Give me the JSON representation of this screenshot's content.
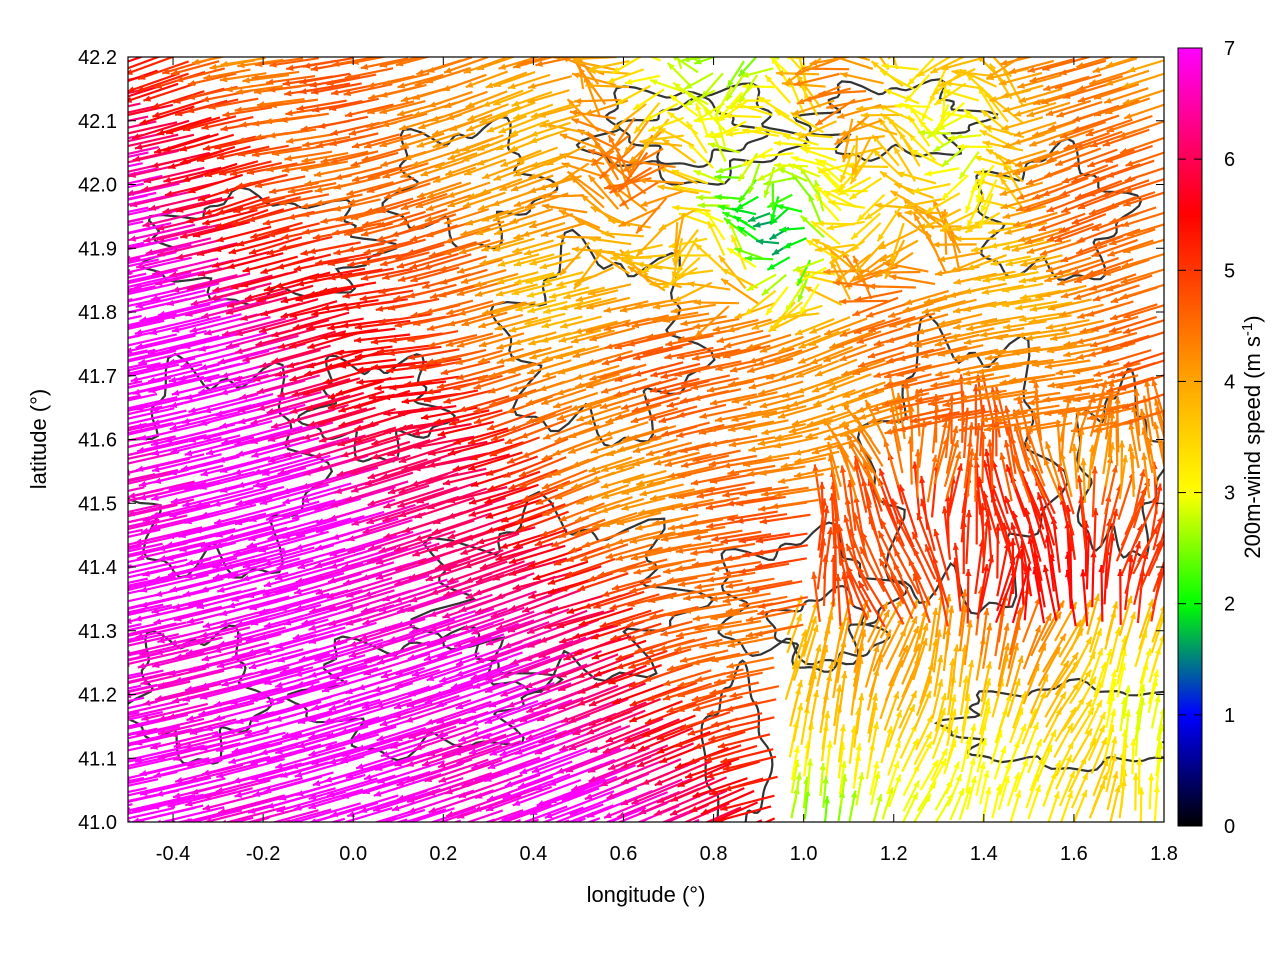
{
  "chart_data": {
    "type": "vector-field",
    "xlabel": "longitude (°)",
    "ylabel": "latitude (°)",
    "xlim": [
      -0.5,
      1.8
    ],
    "ylim": [
      41.0,
      42.2
    ],
    "xticks": [
      -0.4,
      -0.2,
      0.0,
      0.2,
      0.4,
      0.6,
      0.8,
      1.0,
      1.2,
      1.4,
      1.6,
      1.8
    ],
    "xtick_labels": [
      "-0.4",
      "-0.2",
      "0.0",
      "0.2",
      "0.4",
      "0.6",
      "0.8",
      "1.0",
      "1.2",
      "1.4",
      "1.6",
      "1.8"
    ],
    "yticks": [
      41.0,
      41.1,
      41.2,
      41.3,
      41.4,
      41.5,
      41.6,
      41.7,
      41.8,
      41.9,
      42.0,
      42.1,
      42.2
    ],
    "ytick_labels": [
      "41.0",
      "41.1",
      "41.2",
      "41.3",
      "41.4",
      "41.5",
      "41.6",
      "41.7",
      "41.8",
      "41.9",
      "42.0",
      "42.1",
      "42.2"
    ],
    "colorbar": {
      "label": "200m-wind speed (m s-1)",
      "label_main": "200m-wind speed (m s",
      "label_sup": "-1",
      "label_end": ")",
      "range": [
        0,
        7
      ],
      "ticks": [
        0,
        1,
        2,
        3,
        4,
        5,
        6,
        7
      ],
      "tick_labels": [
        "0",
        "1",
        "2",
        "3",
        "4",
        "5",
        "6",
        "7"
      ],
      "colors": [
        "#000000",
        "#0000ff",
        "#00ff00",
        "#ffff00",
        "#ffa500",
        "#ff0000",
        "#ff00ff"
      ],
      "color_stops": [
        0,
        1,
        2,
        3,
        4,
        5.5,
        7
      ]
    },
    "grid": false,
    "contours_color": "#333333",
    "region_speed_description": "strong magenta westward flow southwest, red/orange northward flow southeast, weak variable flow north-center"
  }
}
